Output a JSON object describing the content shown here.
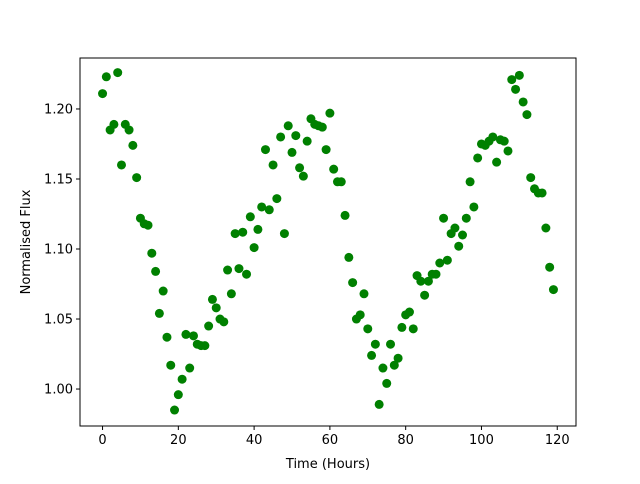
{
  "chart_data": {
    "type": "scatter",
    "xlabel": "Time (Hours)",
    "ylabel": "Normalised Flux",
    "color": "green",
    "x": [
      0,
      1,
      2,
      3,
      4,
      5,
      6,
      7,
      8,
      9,
      10,
      11,
      12,
      13,
      14,
      15,
      16,
      17,
      18,
      19,
      20,
      21,
      22,
      23,
      24,
      25,
      26,
      27,
      28,
      29,
      30,
      31,
      32,
      33,
      34,
      35,
      36,
      37,
      38,
      39,
      40,
      41,
      42,
      43,
      44,
      45,
      46,
      47,
      48,
      49,
      50,
      51,
      52,
      53,
      54,
      55,
      56,
      57,
      58,
      59,
      60,
      61,
      62,
      63,
      64,
      65,
      66,
      67,
      68,
      69,
      70,
      71,
      72,
      73,
      74,
      75,
      76,
      77,
      78,
      79,
      80,
      81,
      82,
      83,
      84,
      85,
      86,
      87,
      88,
      89,
      90,
      91,
      92,
      93,
      94,
      95,
      96,
      97,
      98,
      99,
      100,
      101,
      102,
      103,
      104,
      105,
      106,
      107,
      108,
      109,
      110,
      111,
      112,
      113,
      114,
      115,
      116,
      117,
      118,
      119
    ],
    "values": [
      1.211,
      1.223,
      1.185,
      1.189,
      1.226,
      1.16,
      1.189,
      1.185,
      1.174,
      1.151,
      1.122,
      1.118,
      1.117,
      1.097,
      1.084,
      1.054,
      1.07,
      1.037,
      1.017,
      0.985,
      0.996,
      1.007,
      1.039,
      1.015,
      1.038,
      1.032,
      1.031,
      1.031,
      1.045,
      1.064,
      1.058,
      1.05,
      1.048,
      1.085,
      1.068,
      1.111,
      1.086,
      1.112,
      1.082,
      1.123,
      1.101,
      1.114,
      1.13,
      1.171,
      1.128,
      1.16,
      1.136,
      1.18,
      1.111,
      1.188,
      1.169,
      1.181,
      1.158,
      1.152,
      1.177,
      1.193,
      1.189,
      1.188,
      1.187,
      1.171,
      1.197,
      1.157,
      1.148,
      1.148,
      1.124,
      1.094,
      1.076,
      1.05,
      1.053,
      1.068,
      1.043,
      1.024,
      1.032,
      0.989,
      1.015,
      1.004,
      1.032,
      1.017,
      1.022,
      1.044,
      1.053,
      1.055,
      1.043,
      1.081,
      1.077,
      1.067,
      1.077,
      1.082,
      1.082,
      1.09,
      1.122,
      1.092,
      1.111,
      1.115,
      1.102,
      1.11,
      1.122,
      1.148,
      1.13,
      1.165,
      1.175,
      1.174,
      1.177,
      1.18,
      1.162,
      1.178,
      1.177,
      1.17,
      1.221,
      1.214,
      1.224,
      1.205,
      1.196,
      1.151,
      1.143,
      1.14,
      1.14,
      1.115,
      1.087,
      1.071
    ],
    "xlim": [
      -5.95,
      124.95
    ],
    "ylim": [
      0.9736,
      1.2364
    ],
    "xticks": [
      0,
      20,
      40,
      60,
      80,
      100,
      120
    ],
    "yticks": [
      {
        "value": 1.0,
        "label": "1.00"
      },
      {
        "value": 1.05,
        "label": "1.05"
      },
      {
        "value": 1.1,
        "label": "1.10"
      },
      {
        "value": 1.15,
        "label": "1.15"
      },
      {
        "value": 1.2,
        "label": "1.20"
      }
    ]
  }
}
